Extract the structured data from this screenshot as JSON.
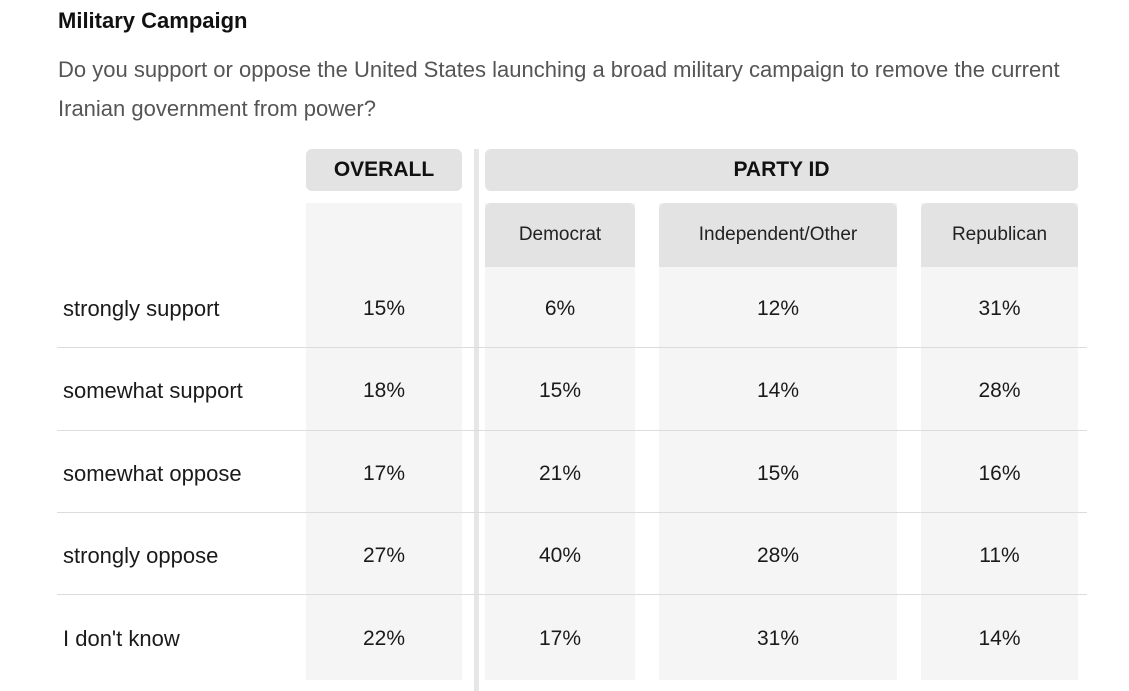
{
  "title": "Military Campaign",
  "question": "Do you support or oppose the United States launching a broad military campaign to remove the current Iranian government from power?",
  "headers": {
    "overall": "OVERALL",
    "party": "PARTY ID"
  },
  "chart_data": {
    "type": "table",
    "title": "Military Campaign",
    "columns": [
      "Overall",
      "Democrat",
      "Independent/Other",
      "Republican"
    ],
    "subcolumns": [
      "Democrat",
      "Independent/Other",
      "Republican"
    ],
    "rows": [
      {
        "label": "strongly support",
        "values": [
          "15%",
          "6%",
          "12%",
          "31%"
        ]
      },
      {
        "label": "somewhat support",
        "values": [
          "18%",
          "15%",
          "14%",
          "28%"
        ]
      },
      {
        "label": "somewhat oppose",
        "values": [
          "17%",
          "21%",
          "15%",
          "16%"
        ]
      },
      {
        "label": "strongly oppose",
        "values": [
          "27%",
          "40%",
          "28%",
          "11%"
        ]
      },
      {
        "label": "I don't know",
        "values": [
          "22%",
          "17%",
          "31%",
          "14%"
        ]
      }
    ]
  }
}
